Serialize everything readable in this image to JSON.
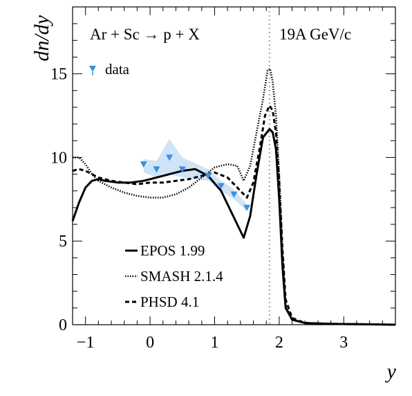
{
  "chart_data": {
    "type": "line",
    "xlabel": "y",
    "ylabel": "dn/dy",
    "xlim": [
      -1.2,
      3.8
    ],
    "ylim": [
      0,
      19
    ],
    "x_ticks": [
      -1,
      0,
      1,
      2,
      3
    ],
    "x_tick_labels": [
      "−1",
      "0",
      "1",
      "2",
      "3"
    ],
    "y_ticks": [
      0,
      5,
      10,
      15
    ],
    "y_tick_labels": [
      "0",
      "5",
      "10",
      "15"
    ],
    "annotations": {
      "reaction": "Ar + Sc → p + X",
      "energy": "19A GeV/c",
      "beam_rapidity_marker": 1.85
    },
    "legend_placement": "left",
    "data_legend": "data",
    "data": {
      "name": "data",
      "color": "#3c8fe0",
      "band_color": "#cfe4f7",
      "x": [
        -0.1,
        0.1,
        0.3,
        0.5,
        0.9,
        1.1,
        1.3,
        1.5
      ],
      "y": [
        9.6,
        9.3,
        10.0,
        9.3,
        8.9,
        8.3,
        7.8,
        7.0
      ],
      "sys_low": [
        9.1,
        8.8,
        9.0,
        8.8,
        8.6,
        8.0,
        7.5,
        6.8
      ],
      "sys_high": [
        9.9,
        9.8,
        11.1,
        10.0,
        9.3,
        8.6,
        8.1,
        7.2
      ]
    },
    "series": [
      {
        "name": "EPOS 1.99",
        "style": "solid",
        "x": [
          -1.2,
          -1.1,
          -1.0,
          -0.9,
          -0.8,
          -0.7,
          -0.5,
          -0.3,
          -0.1,
          0.1,
          0.3,
          0.5,
          0.7,
          0.9,
          1.1,
          1.3,
          1.45,
          1.55,
          1.65,
          1.75,
          1.85,
          1.9,
          1.95,
          2.0,
          2.05,
          2.1,
          2.2,
          2.4,
          2.8,
          3.8
        ],
        "y": [
          6.2,
          7.3,
          8.2,
          8.6,
          8.7,
          8.6,
          8.5,
          8.5,
          8.6,
          8.8,
          9.0,
          9.2,
          9.3,
          8.9,
          8.0,
          6.4,
          5.2,
          6.5,
          9.0,
          11.2,
          11.7,
          11.5,
          10.5,
          7.5,
          3.5,
          1.0,
          0.3,
          0.1,
          0.05,
          0.0
        ]
      },
      {
        "name": "SMASH 2.1.4",
        "style": "dotted",
        "x": [
          -1.2,
          -1.1,
          -1.0,
          -0.9,
          -0.8,
          -0.6,
          -0.4,
          -0.2,
          0.0,
          0.2,
          0.4,
          0.6,
          0.8,
          1.0,
          1.2,
          1.35,
          1.45,
          1.55,
          1.65,
          1.75,
          1.82,
          1.86,
          1.9,
          1.95,
          2.0,
          2.05,
          2.1,
          2.2,
          2.4,
          2.8,
          3.8
        ],
        "y": [
          10.0,
          10.0,
          9.6,
          9.0,
          8.6,
          8.2,
          7.9,
          7.7,
          7.6,
          7.6,
          7.8,
          8.2,
          8.8,
          9.4,
          9.6,
          9.5,
          8.6,
          9.5,
          11.5,
          13.5,
          15.2,
          15.3,
          14.5,
          12.5,
          9.0,
          4.5,
          1.2,
          0.3,
          0.1,
          0.05,
          0.0
        ]
      },
      {
        "name": "PHSD 4.1",
        "style": "dashed",
        "x": [
          -1.2,
          -1.1,
          -1.0,
          -0.9,
          -0.8,
          -0.6,
          -0.4,
          -0.2,
          0.0,
          0.2,
          0.4,
          0.6,
          0.8,
          1.0,
          1.2,
          1.35,
          1.5,
          1.6,
          1.7,
          1.78,
          1.85,
          1.9,
          1.95,
          2.0,
          2.05,
          2.1,
          2.2,
          2.4,
          2.8,
          3.8
        ],
        "y": [
          9.2,
          9.3,
          9.2,
          9.0,
          8.8,
          8.6,
          8.5,
          8.4,
          8.5,
          8.5,
          8.6,
          8.7,
          8.9,
          9.1,
          8.8,
          8.2,
          7.6,
          8.5,
          10.6,
          12.5,
          13.1,
          12.8,
          11.5,
          8.5,
          4.5,
          1.5,
          0.4,
          0.1,
          0.05,
          0.0
        ]
      }
    ]
  }
}
